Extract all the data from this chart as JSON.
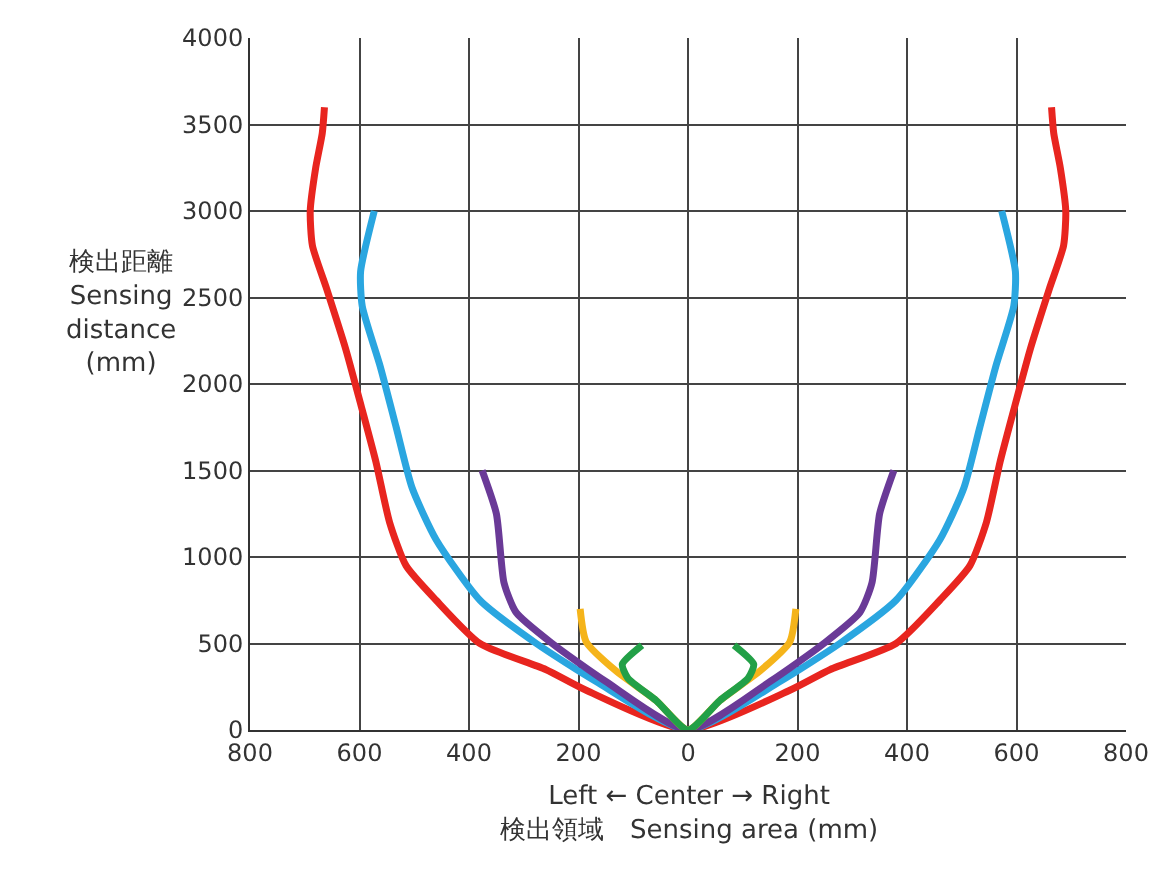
{
  "chart_data": {
    "type": "line",
    "xlabel": "Left ← Center → Right\n検出領域　Sensing area (mm)",
    "ylabel": "検出距離\nSensing\ndistance\n(mm)",
    "xlim": [
      -800,
      800
    ],
    "ylim": [
      0,
      4000
    ],
    "xticks": [
      {
        "value": -800,
        "label": "800"
      },
      {
        "value": -600,
        "label": "600"
      },
      {
        "value": -400,
        "label": "400"
      },
      {
        "value": -200,
        "label": "200"
      },
      0,
      200,
      400,
      600,
      800
    ],
    "yticks": [
      0,
      500,
      1000,
      1500,
      2000,
      2500,
      3000,
      3500,
      4000
    ],
    "grid": true,
    "marker": "none",
    "line_style": "solid",
    "series": [
      {
        "color": "#e8251f",
        "x": [
          -664,
          -668,
          -680,
          -690,
          -686,
          -660,
          -625,
          -595,
          -570,
          -545,
          -515,
          -460,
          -380,
          -260,
          -186,
          0,
          186,
          260,
          380,
          460,
          515,
          545,
          570,
          595,
          625,
          660,
          686,
          690,
          680,
          668,
          664
        ],
        "values": [
          3600,
          3450,
          3250,
          3000,
          2800,
          2550,
          2200,
          1850,
          1550,
          1200,
          950,
          750,
          500,
          350,
          230,
          0,
          230,
          350,
          500,
          750,
          950,
          1200,
          1550,
          1850,
          2200,
          2550,
          2800,
          3000,
          3250,
          3450,
          3600
        ]
      },
      {
        "color": "#2aa6e0",
        "x": [
          -573,
          -598,
          -595,
          -562,
          -533,
          -504,
          -460,
          -380,
          -277,
          -168,
          0,
          168,
          277,
          380,
          460,
          504,
          533,
          562,
          595,
          598,
          573
        ],
        "values": [
          3000,
          2650,
          2450,
          2100,
          1750,
          1400,
          1100,
          750,
          500,
          280,
          0,
          280,
          500,
          750,
          1100,
          1400,
          1750,
          2100,
          2450,
          2650,
          3000
        ]
      },
      {
        "color": "#6a3a97",
        "x": [
          -376,
          -350,
          -336,
          -314,
          -248,
          -150,
          0,
          150,
          248,
          314,
          336,
          350,
          376
        ],
        "values": [
          1500,
          1250,
          850,
          680,
          500,
          280,
          0,
          280,
          500,
          680,
          850,
          1250,
          1500
        ]
      },
      {
        "color": "#f5b41a",
        "x": [
          -197,
          -186,
          -131,
          -58,
          0,
          58,
          131,
          186,
          197
        ],
        "values": [
          700,
          510,
          340,
          170,
          0,
          170,
          340,
          510,
          700
        ]
      },
      {
        "color": "#22a047",
        "x": [
          -84,
          -120,
          -110,
          -58,
          0,
          58,
          110,
          120,
          84
        ],
        "values": [
          490,
          380,
          300,
          170,
          0,
          170,
          300,
          380,
          490
        ]
      }
    ]
  }
}
